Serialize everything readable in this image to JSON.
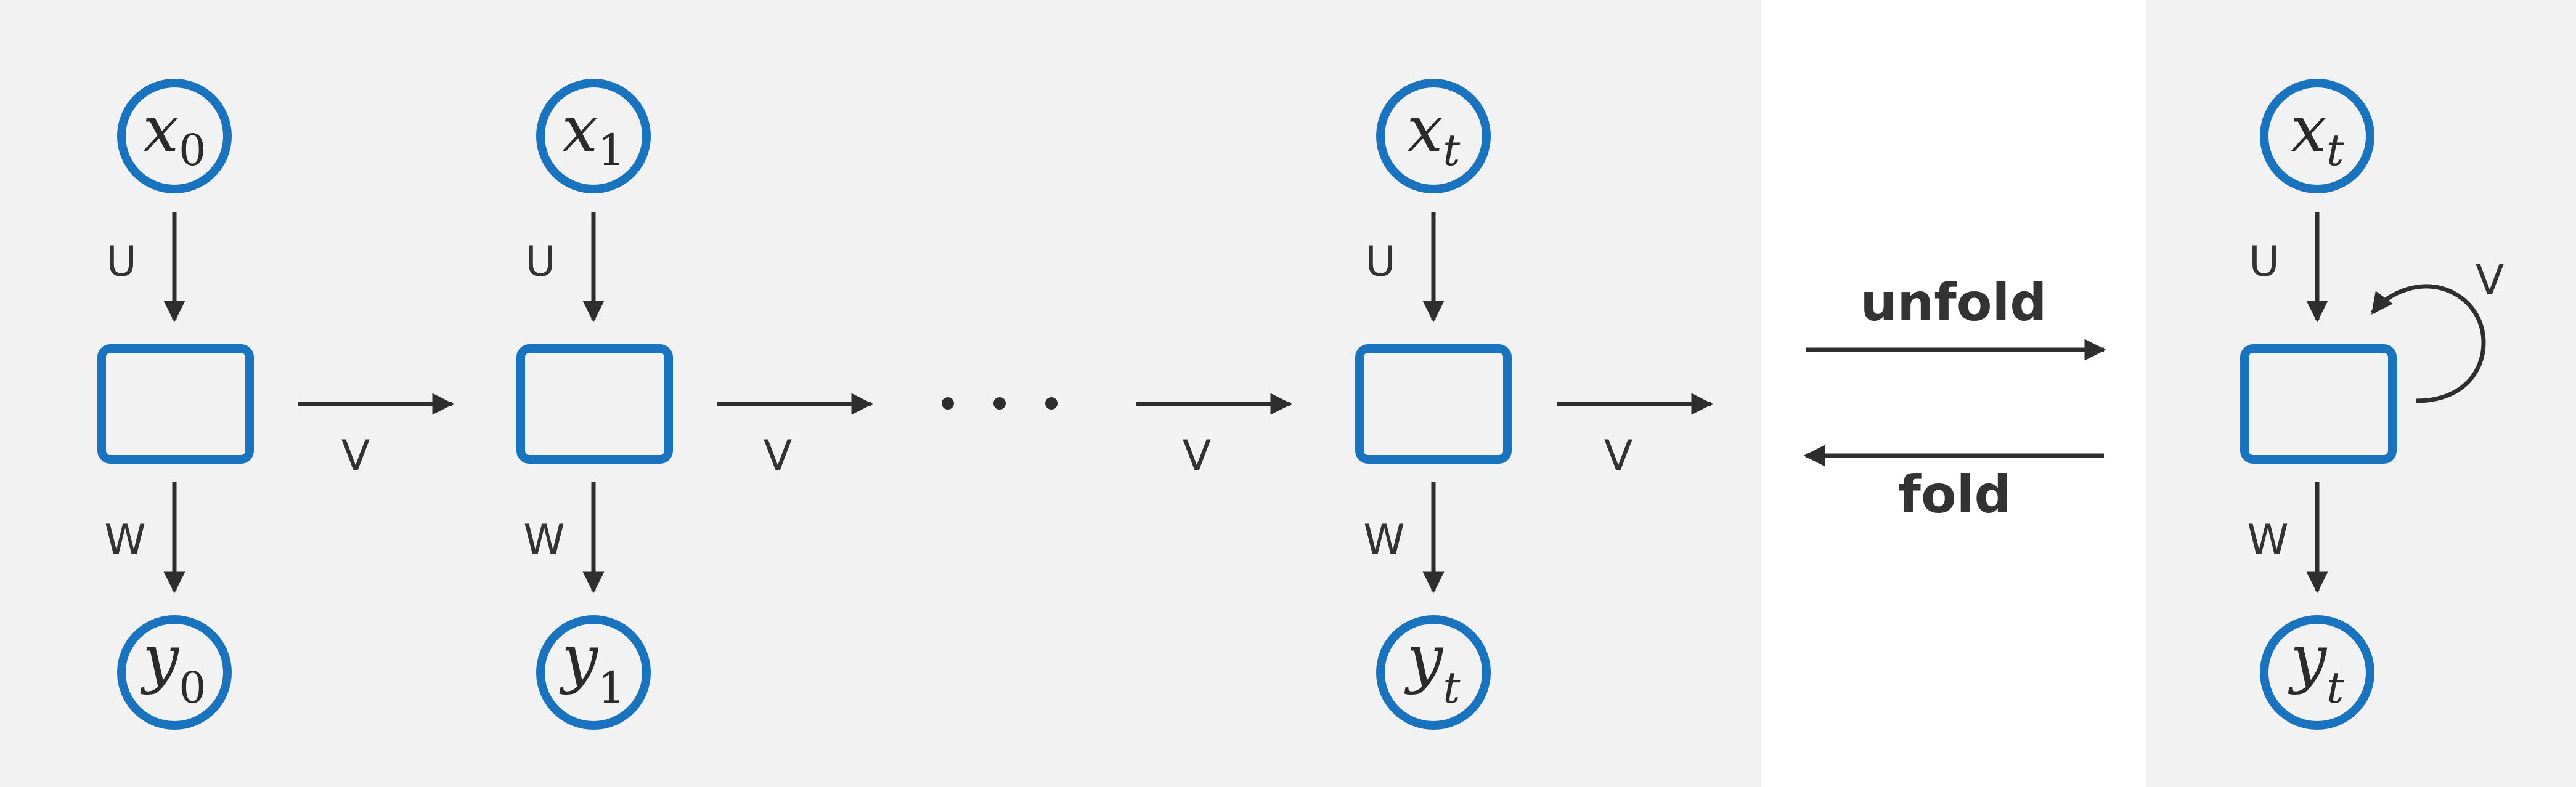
{
  "colors": {
    "node_stroke": "#1a73bf",
    "arrow": "#2e2e2e",
    "panel_bg": "#f2f2f2",
    "text": "#333333"
  },
  "cells": [
    {
      "x_main": "x",
      "x_sub": "0",
      "y_main": "y",
      "y_sub": "0",
      "u": "U",
      "w": "W",
      "v": "V"
    },
    {
      "x_main": "x",
      "x_sub": "1",
      "y_main": "y",
      "y_sub": "1",
      "u": "U",
      "w": "W",
      "v": "V"
    },
    {
      "x_main": "x",
      "x_sub": "t",
      "y_main": "y",
      "y_sub": "t",
      "u": "U",
      "w": "W",
      "v": "V"
    }
  ],
  "ellipsis_v": "V",
  "transform": {
    "unfold": "unfold",
    "fold": "fold"
  },
  "folded": {
    "x_main": "x",
    "x_sub": "t",
    "y_main": "y",
    "y_sub": "t",
    "u": "U",
    "w": "W",
    "v": "V"
  }
}
